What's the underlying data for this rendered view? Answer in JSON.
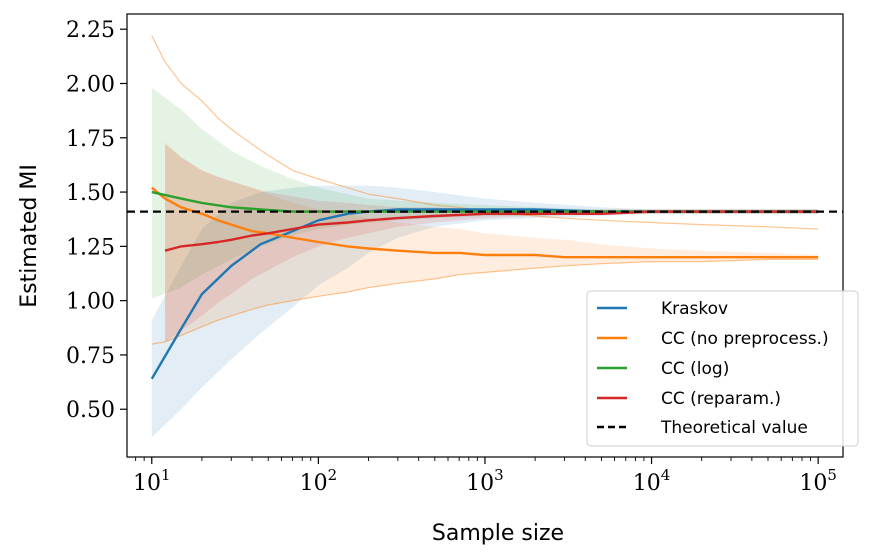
{
  "chart_data": {
    "type": "line",
    "xscale": "log",
    "xlabel": "Sample size",
    "ylabel": "Estimated MI",
    "xlim": [
      7.1,
      141000
    ],
    "ylim": [
      0.28,
      2.32
    ],
    "x_ticks": [
      {
        "value": 10,
        "base": "10",
        "exp": "1"
      },
      {
        "value": 100,
        "base": "10",
        "exp": "2"
      },
      {
        "value": 1000,
        "base": "10",
        "exp": "3"
      },
      {
        "value": 10000,
        "base": "10",
        "exp": "4"
      },
      {
        "value": 100000,
        "base": "10",
        "exp": "5"
      }
    ],
    "y_ticks": [
      {
        "value": 0.5,
        "label": "0.50"
      },
      {
        "value": 0.75,
        "label": "0.75"
      },
      {
        "value": 1.0,
        "label": "1.00"
      },
      {
        "value": 1.25,
        "label": "1.25"
      },
      {
        "value": 1.5,
        "label": "1.50"
      },
      {
        "value": 1.75,
        "label": "1.75"
      },
      {
        "value": 2.0,
        "label": "2.00"
      },
      {
        "value": 2.25,
        "label": "2.25"
      }
    ],
    "theoretical_value": 1.41,
    "legend_position": "lower-right",
    "series": [
      {
        "name": "Kraskov",
        "color": "#1f77b4",
        "x": [
          10,
          15,
          20,
          30,
          45,
          70,
          100,
          150,
          200,
          300,
          500,
          1000,
          2000,
          5000,
          10000,
          30000,
          100000
        ],
        "values": [
          0.64,
          0.87,
          1.03,
          1.16,
          1.26,
          1.32,
          1.37,
          1.4,
          1.41,
          1.42,
          1.42,
          1.42,
          1.42,
          1.41,
          1.41,
          1.41,
          1.41
        ],
        "band_lower": [
          0.37,
          0.5,
          0.6,
          0.73,
          0.85,
          0.97,
          1.07,
          1.15,
          1.22,
          1.29,
          1.34,
          1.37,
          1.38,
          1.39,
          1.4,
          1.4,
          1.4
        ],
        "band_upper": [
          0.91,
          1.16,
          1.33,
          1.45,
          1.5,
          1.52,
          1.53,
          1.53,
          1.53,
          1.52,
          1.5,
          1.47,
          1.45,
          1.43,
          1.42,
          1.42,
          1.42
        ]
      },
      {
        "name": "CC (no preprocess.)",
        "color": "#ff7f0e",
        "x": [
          10,
          12,
          15,
          20,
          25,
          30,
          40,
          50,
          70,
          100,
          150,
          200,
          300,
          500,
          700,
          1000,
          2000,
          3000,
          5000,
          10000,
          20000,
          50000,
          100000
        ],
        "values": [
          1.52,
          1.47,
          1.43,
          1.4,
          1.37,
          1.35,
          1.32,
          1.31,
          1.29,
          1.27,
          1.25,
          1.24,
          1.23,
          1.22,
          1.22,
          1.21,
          1.21,
          1.2,
          1.2,
          1.2,
          1.2,
          1.2,
          1.2
        ],
        "band_lower": [
          null,
          0.81,
          0.84,
          0.88,
          0.91,
          0.93,
          0.96,
          0.98,
          1.0,
          1.02,
          1.04,
          1.06,
          1.08,
          1.1,
          1.12,
          1.13,
          1.15,
          1.16,
          1.17,
          1.18,
          1.18,
          1.19,
          1.19
        ],
        "band_upper": [
          null,
          1.73,
          1.66,
          1.6,
          1.57,
          1.55,
          1.52,
          1.49,
          1.45,
          1.42,
          1.4,
          1.38,
          1.36,
          1.34,
          1.33,
          1.31,
          1.29,
          1.28,
          1.26,
          1.24,
          1.23,
          1.22,
          1.21
        ],
        "thin_upper": [
          2.22,
          2.1,
          2.0,
          1.92,
          1.84,
          1.79,
          1.72,
          1.67,
          1.6,
          1.56,
          1.52,
          1.49,
          1.47,
          1.44,
          1.43,
          1.41,
          1.39,
          1.38,
          1.37,
          1.36,
          1.35,
          1.34,
          1.33
        ],
        "thin_lower": [
          0.8,
          0.81,
          0.84,
          0.88,
          0.91,
          0.93,
          0.96,
          0.98,
          1.0,
          1.02,
          1.04,
          1.06,
          1.08,
          1.1,
          1.12,
          1.13,
          1.15,
          1.16,
          1.17,
          1.18,
          1.18,
          1.19,
          1.19
        ]
      },
      {
        "name": "CC (log)",
        "color": "#2ca02c",
        "x": [
          10,
          15,
          20,
          30,
          45,
          70,
          100,
          150,
          200,
          300,
          500,
          1000,
          2000,
          5000,
          10000,
          30000,
          100000
        ],
        "values": [
          1.5,
          1.47,
          1.45,
          1.43,
          1.42,
          1.41,
          1.41,
          1.41,
          1.41,
          1.41,
          1.41,
          1.41,
          1.41,
          1.41,
          1.41,
          1.41,
          1.41
        ],
        "band_lower": [
          1.01,
          1.06,
          1.12,
          1.19,
          1.25,
          1.3,
          1.33,
          1.35,
          1.36,
          1.37,
          1.38,
          1.39,
          1.39,
          1.4,
          1.4,
          1.4,
          1.4
        ],
        "band_upper": [
          1.98,
          1.88,
          1.79,
          1.69,
          1.62,
          1.56,
          1.52,
          1.49,
          1.47,
          1.46,
          1.45,
          1.44,
          1.43,
          1.42,
          1.42,
          1.42,
          1.42
        ]
      },
      {
        "name": "CC (reparam.)",
        "color": "#d62728",
        "x": [
          12,
          15,
          20,
          25,
          30,
          40,
          50,
          70,
          100,
          150,
          200,
          300,
          500,
          1000,
          2000,
          5000,
          10000,
          30000,
          100000
        ],
        "values": [
          1.23,
          1.25,
          1.26,
          1.27,
          1.28,
          1.3,
          1.31,
          1.33,
          1.35,
          1.36,
          1.37,
          1.38,
          1.39,
          1.4,
          1.4,
          1.4,
          1.41,
          1.41,
          1.41
        ],
        "band_lower": [
          0.81,
          0.86,
          0.93,
          0.99,
          1.03,
          1.1,
          1.14,
          1.2,
          1.25,
          1.29,
          1.31,
          1.34,
          1.36,
          1.38,
          1.39,
          1.4,
          1.4,
          1.4,
          1.4
        ],
        "band_upper": [
          1.72,
          1.66,
          1.6,
          1.57,
          1.55,
          1.52,
          1.5,
          1.48,
          1.46,
          1.45,
          1.44,
          1.43,
          1.43,
          1.42,
          1.42,
          1.42,
          1.42,
          1.42,
          1.42
        ]
      },
      {
        "name": "Theoretical value",
        "color": "#000000",
        "style": "dashed",
        "x": [
          7.1,
          141000
        ],
        "values": [
          1.41,
          1.41
        ]
      }
    ]
  }
}
